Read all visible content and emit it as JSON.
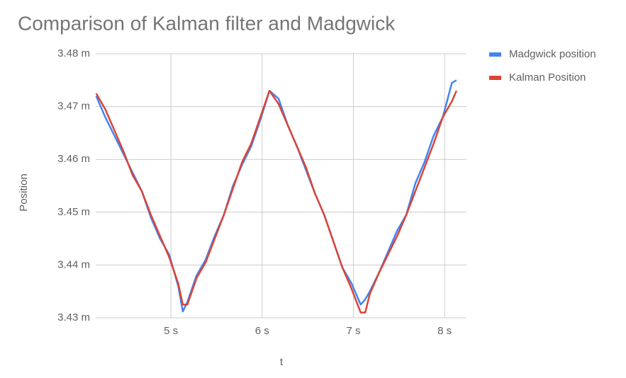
{
  "chart_data": {
    "type": "line",
    "title": "Comparison of Kalman filter and Madgwick",
    "x_label": "t",
    "y_label": "Position",
    "x": [
      4.18,
      4.28,
      4.38,
      4.48,
      4.58,
      4.68,
      4.78,
      4.88,
      4.98,
      5.08,
      5.13,
      5.18,
      5.28,
      5.38,
      5.48,
      5.58,
      5.68,
      5.78,
      5.88,
      5.98,
      6.08,
      6.18,
      6.28,
      6.38,
      6.48,
      6.58,
      6.68,
      6.78,
      6.88,
      6.98,
      7.08,
      7.13,
      7.18,
      7.28,
      7.38,
      7.48,
      7.58,
      7.68,
      7.78,
      7.88,
      7.98,
      8.08,
      8.13
    ],
    "series": [
      {
        "name": "Madgwick position",
        "color": "#4285f4",
        "values": [
          3.472,
          3.468,
          3.4645,
          3.461,
          3.4575,
          3.454,
          3.449,
          3.445,
          3.442,
          3.436,
          3.4312,
          3.433,
          3.438,
          3.441,
          3.4455,
          3.4495,
          3.455,
          3.459,
          3.4625,
          3.4675,
          3.473,
          3.4715,
          3.4665,
          3.4625,
          3.458,
          3.4535,
          3.4495,
          3.4445,
          3.4395,
          3.4365,
          3.4325,
          3.4335,
          3.435,
          3.4385,
          3.4425,
          3.4465,
          3.4495,
          3.4555,
          3.4595,
          3.4645,
          3.468,
          3.4745,
          3.475
        ]
      },
      {
        "name": "Kalman Position",
        "color": "#db4437",
        "values": [
          3.4725,
          3.4695,
          3.4655,
          3.4615,
          3.457,
          3.454,
          3.4495,
          3.4455,
          3.4415,
          3.4365,
          3.4325,
          3.4325,
          3.4375,
          3.4405,
          3.445,
          3.4495,
          3.4545,
          3.4595,
          3.463,
          3.468,
          3.473,
          3.4705,
          3.4665,
          3.4625,
          3.4585,
          3.4535,
          3.4495,
          3.4445,
          3.4395,
          3.4355,
          3.431,
          3.431,
          3.4345,
          3.4385,
          3.442,
          3.4455,
          3.4495,
          3.454,
          3.4585,
          3.463,
          3.468,
          3.471,
          3.473
        ]
      }
    ],
    "xlim": [
      4.175,
      8.24
    ],
    "xticks": [
      {
        "value": 5,
        "label": "5 s"
      },
      {
        "value": 6,
        "label": "6 s"
      },
      {
        "value": 7,
        "label": "7 s"
      },
      {
        "value": 8,
        "label": "8 s"
      }
    ],
    "ylim": [
      3.43,
      3.48
    ],
    "yticks": [
      {
        "value": 3.43,
        "label": "3.43 m"
      },
      {
        "value": 3.44,
        "label": "3.44 m"
      },
      {
        "value": 3.45,
        "label": "3.45 m"
      },
      {
        "value": 3.46,
        "label": "3.46 m"
      },
      {
        "value": 3.47,
        "label": "3.47 m"
      },
      {
        "value": 3.48,
        "label": "3.48 m"
      }
    ],
    "grid": true,
    "legend": "right"
  }
}
